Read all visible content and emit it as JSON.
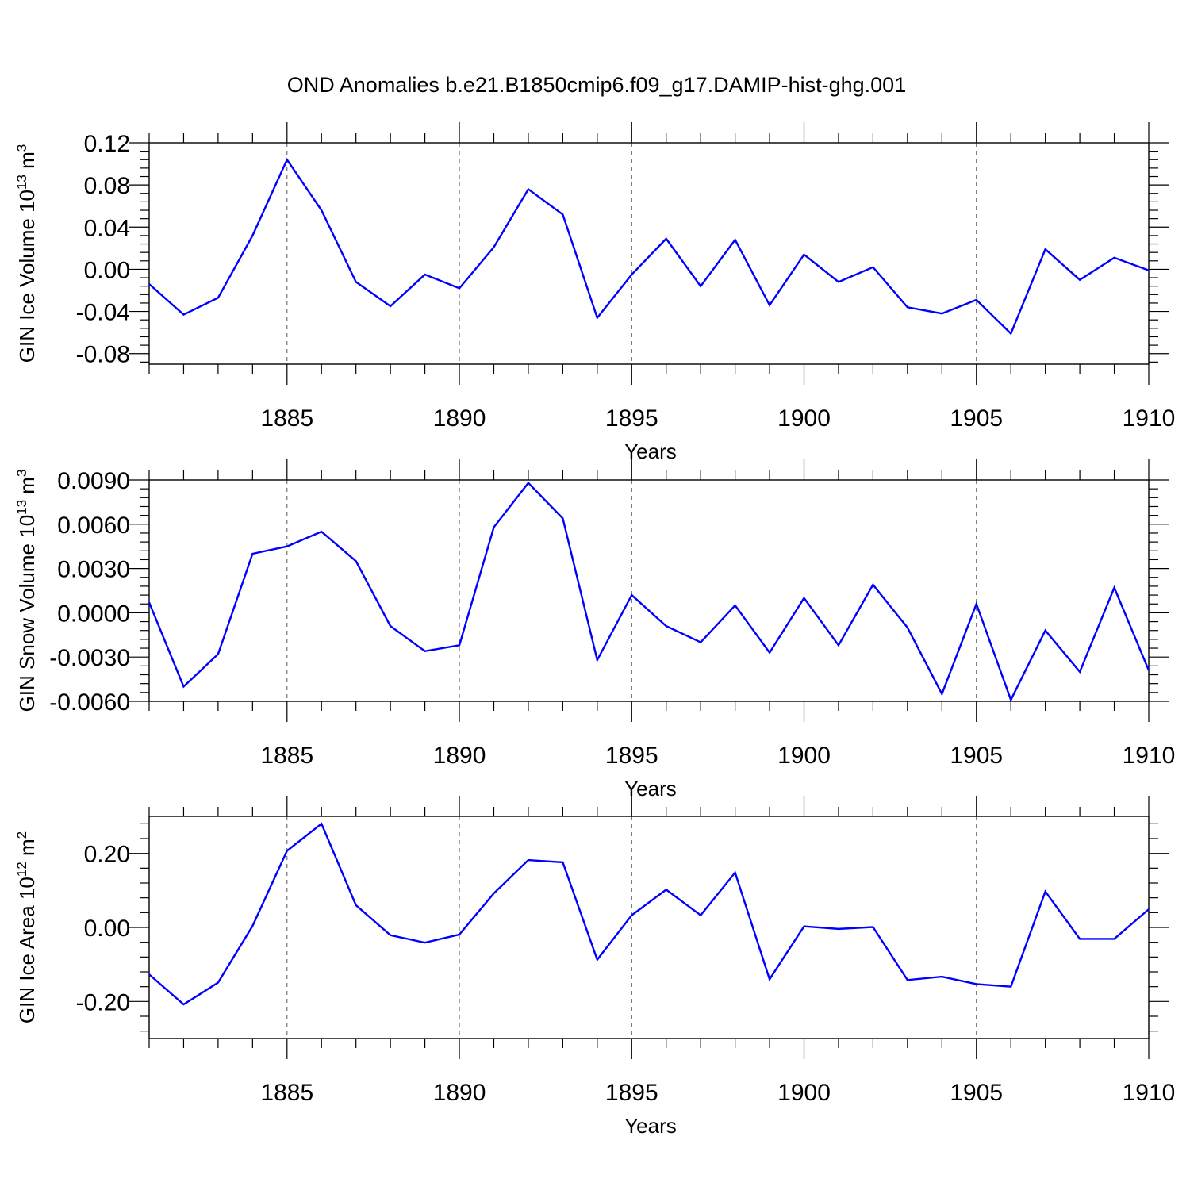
{
  "title": "OND Anomalies b.e21.B1850cmip6.f09_g17.DAMIP-hist-ghg.001",
  "colors": {
    "line": "#0000ff",
    "axis": "#000000",
    "grid": "#555555",
    "background": "#ffffff"
  },
  "chart_data": [
    {
      "type": "line",
      "title": "",
      "xlabel": "Years",
      "ylabel": "GIN Ice Volume 10",
      "ylabel_exp": "13",
      "ylabel_unit": " m",
      "ylabel_unit_exp": "3",
      "xlim": [
        1881,
        1910
      ],
      "ylim": [
        -0.09,
        0.12
      ],
      "xticks": [
        1885,
        1890,
        1895,
        1900,
        1905,
        1910
      ],
      "xtick_labels": [
        "1885",
        "1890",
        "1895",
        "1900",
        "1905",
        "1910"
      ],
      "yticks": [
        -0.08,
        -0.04,
        0.0,
        0.04,
        0.08,
        0.12
      ],
      "ytick_labels": [
        "-0.08",
        "-0.04",
        "0.00",
        "0.04",
        "0.08",
        "0.12"
      ],
      "grid": "vertical dashed at major x ticks",
      "x": [
        1881,
        1882,
        1883,
        1884,
        1885,
        1886,
        1887,
        1888,
        1889,
        1890,
        1891,
        1892,
        1893,
        1894,
        1895,
        1896,
        1897,
        1898,
        1899,
        1900,
        1901,
        1902,
        1903,
        1904,
        1905,
        1906,
        1907,
        1908,
        1909,
        1910
      ],
      "series": [
        {
          "name": "GIN Ice Volume",
          "values": [
            -0.014,
            -0.043,
            -0.027,
            0.032,
            0.104,
            0.056,
            -0.012,
            -0.035,
            -0.005,
            -0.018,
            0.021,
            0.076,
            0.052,
            -0.046,
            -0.005,
            0.029,
            -0.016,
            0.028,
            -0.034,
            0.014,
            -0.012,
            0.002,
            -0.036,
            -0.042,
            -0.029,
            -0.061,
            0.019,
            -0.01,
            0.011,
            -0.001
          ]
        }
      ]
    },
    {
      "type": "line",
      "title": "",
      "xlabel": "Years",
      "ylabel": "GIN Snow Volume 10",
      "ylabel_exp": "13",
      "ylabel_unit": " m",
      "ylabel_unit_exp": "3",
      "xlim": [
        1881,
        1910
      ],
      "ylim": [
        -0.006,
        0.009
      ],
      "xticks": [
        1885,
        1890,
        1895,
        1900,
        1905,
        1910
      ],
      "xtick_labels": [
        "1885",
        "1890",
        "1895",
        "1900",
        "1905",
        "1910"
      ],
      "yticks": [
        -0.006,
        -0.003,
        0.0,
        0.003,
        0.006,
        0.009
      ],
      "ytick_labels": [
        "-0.0060",
        "-0.0030",
        "0.0000",
        "0.0030",
        "0.0060",
        "0.0090"
      ],
      "grid": "vertical dashed at major x ticks",
      "x": [
        1881,
        1882,
        1883,
        1884,
        1885,
        1886,
        1887,
        1888,
        1889,
        1890,
        1891,
        1892,
        1893,
        1894,
        1895,
        1896,
        1897,
        1898,
        1899,
        1900,
        1901,
        1902,
        1903,
        1904,
        1905,
        1906,
        1907,
        1908,
        1909,
        1910
      ],
      "series": [
        {
          "name": "GIN Snow Volume",
          "values": [
            0.0007,
            -0.005,
            -0.0028,
            0.004,
            0.0045,
            0.0055,
            0.0035,
            -0.0009,
            -0.0026,
            -0.0022,
            0.0058,
            0.0088,
            0.0064,
            -0.0032,
            0.0012,
            -0.0009,
            -0.002,
            0.0005,
            -0.0027,
            0.001,
            -0.0022,
            0.0019,
            -0.001,
            -0.0055,
            0.0006,
            -0.0059,
            -0.0012,
            -0.004,
            0.0017,
            -0.0039
          ]
        }
      ]
    },
    {
      "type": "line",
      "title": "",
      "xlabel": "Years",
      "ylabel": "GIN Ice Area 10",
      "ylabel_exp": "12",
      "ylabel_unit": " m",
      "ylabel_unit_exp": "2",
      "xlim": [
        1881,
        1910
      ],
      "ylim": [
        -0.3,
        0.3
      ],
      "xticks": [
        1885,
        1890,
        1895,
        1900,
        1905,
        1910
      ],
      "xtick_labels": [
        "1885",
        "1890",
        "1895",
        "1900",
        "1905",
        "1910"
      ],
      "yticks": [
        -0.2,
        0.0,
        0.2
      ],
      "ytick_labels": [
        "-0.20",
        "0.00",
        "0.20"
      ],
      "grid": "vertical dashed at major x ticks",
      "x": [
        1881,
        1882,
        1883,
        1884,
        1885,
        1886,
        1887,
        1888,
        1889,
        1890,
        1891,
        1892,
        1893,
        1894,
        1895,
        1896,
        1897,
        1898,
        1899,
        1900,
        1901,
        1902,
        1903,
        1904,
        1905,
        1906,
        1907,
        1908,
        1909,
        1910
      ],
      "series": [
        {
          "name": "GIN Ice Area",
          "values": [
            -0.127,
            -0.208,
            -0.149,
            0.004,
            0.207,
            0.28,
            0.06,
            -0.021,
            -0.041,
            -0.019,
            0.092,
            0.182,
            0.176,
            -0.087,
            0.033,
            0.102,
            0.033,
            0.148,
            -0.14,
            0.003,
            -0.004,
            0.001,
            -0.142,
            -0.133,
            -0.153,
            -0.16,
            0.097,
            -0.031,
            -0.031,
            0.049
          ]
        }
      ]
    }
  ]
}
